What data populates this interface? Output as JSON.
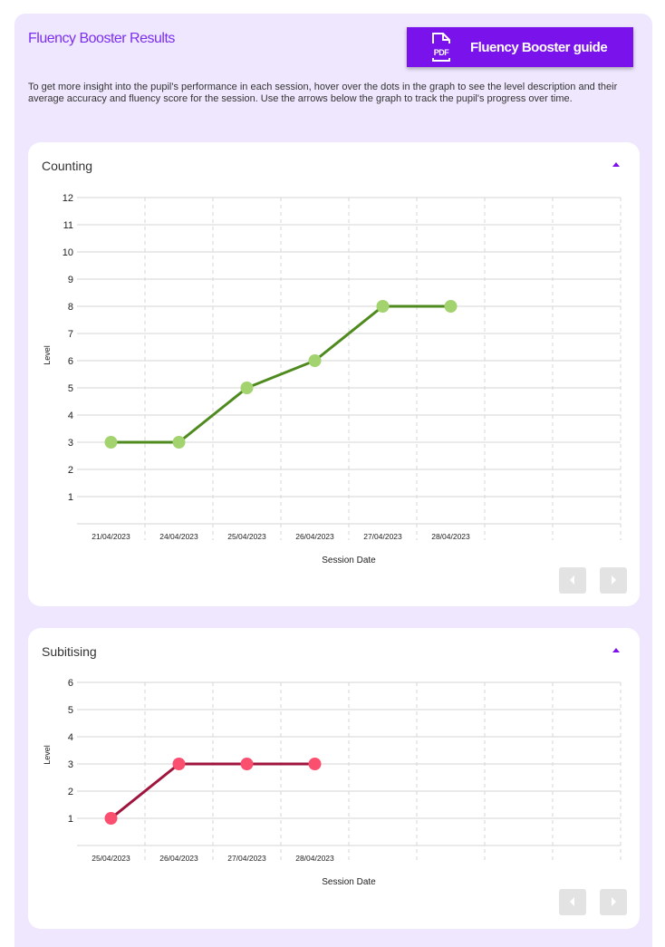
{
  "header": {
    "title": "Fluency Booster Results",
    "guide_button": "Fluency Booster guide",
    "pdf_icon_label": "PDF"
  },
  "intro": "To get more insight into the pupil's performance in each session, hover over the dots in the graph to see the level description and their average accuracy and fluency score for the session. Use the arrows below the graph to track the pupil's progress over time.",
  "colors": {
    "accent": "#7a12ec",
    "counting_line": "#4e8a1e",
    "counting_dot": "#a3d36f",
    "subitising_line": "#a0153e",
    "subitising_dot": "#fb4f70"
  },
  "chart_data": [
    {
      "type": "line",
      "title": "Counting",
      "xlabel": "Session Date",
      "ylabel": "Level",
      "ylim": [
        0,
        12
      ],
      "yticks": [
        1,
        2,
        3,
        4,
        5,
        6,
        7,
        8,
        9,
        10,
        11,
        12
      ],
      "grid": true,
      "categories": [
        "21/04/2023",
        "24/04/2023",
        "25/04/2023",
        "26/04/2023",
        "27/04/2023",
        "28/04/2023"
      ],
      "values": [
        3,
        3,
        5,
        6,
        8,
        8
      ]
    },
    {
      "type": "line",
      "title": "Subitising",
      "xlabel": "Session Date",
      "ylabel": "Level",
      "ylim": [
        0,
        6
      ],
      "yticks": [
        1,
        2,
        3,
        4,
        5,
        6
      ],
      "grid": true,
      "categories": [
        "25/04/2023",
        "26/04/2023",
        "27/04/2023",
        "28/04/2023"
      ],
      "values": [
        1,
        3,
        3,
        3
      ]
    }
  ]
}
